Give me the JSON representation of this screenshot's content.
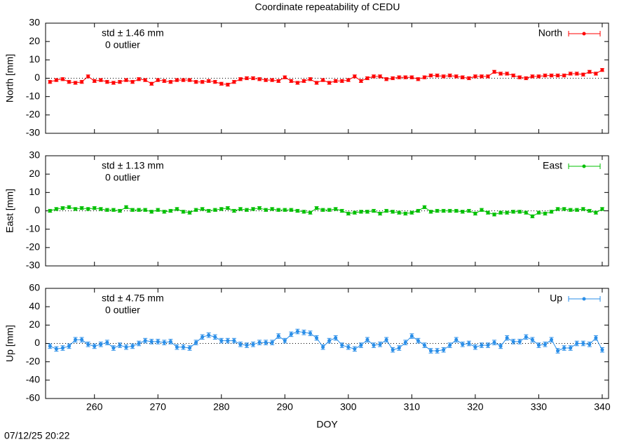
{
  "title": "Coordinate repeatability of CEDU",
  "footer": "07/12/25 20:22",
  "chart_data": [
    {
      "type": "line",
      "ylabel": "North [mm]",
      "std_label": "std ± 1.46 mm",
      "outlier_label": "0 outlier",
      "x": [
        253,
        254,
        255,
        256,
        257,
        258,
        259,
        260,
        261,
        262,
        263,
        264,
        265,
        266,
        267,
        268,
        269,
        270,
        271,
        272,
        273,
        274,
        275,
        276,
        277,
        278,
        279,
        280,
        281,
        282,
        283,
        284,
        285,
        286,
        287,
        288,
        289,
        290,
        291,
        292,
        293,
        294,
        295,
        296,
        297,
        298,
        299,
        300,
        301,
        302,
        303,
        304,
        305,
        306,
        307,
        308,
        309,
        310,
        311,
        312,
        313,
        314,
        315,
        316,
        317,
        318,
        319,
        320,
        321,
        322,
        323,
        324,
        325,
        326,
        327,
        328,
        329,
        330,
        331,
        332,
        333,
        334,
        335,
        336,
        337,
        338,
        339,
        340
      ],
      "xlim": [
        252.3,
        341
      ],
      "xticks": [
        260,
        270,
        280,
        290,
        300,
        310,
        320,
        330,
        340
      ],
      "ylim": [
        -30,
        30
      ],
      "yticks": [
        -30,
        -20,
        -10,
        0,
        10,
        20,
        30
      ],
      "series": [
        {
          "name": "North",
          "color": "#ff0000",
          "error": 0.8,
          "values": [
            -2,
            -1,
            -0.5,
            -2,
            -2.5,
            -2,
            1,
            -1.5,
            -1,
            -2,
            -2.5,
            -2,
            -1,
            -2,
            -0.5,
            -1,
            -3,
            -1,
            -1.5,
            -2,
            -1,
            -1,
            -1,
            -2,
            -2,
            -1.5,
            -2,
            -3,
            -3.5,
            -2,
            -0.5,
            0,
            0,
            -0.5,
            -1,
            -1,
            -1.5,
            0.5,
            -1.5,
            -2.5,
            -1.5,
            -0.5,
            -2.5,
            -1,
            -2.5,
            -1.5,
            -1.5,
            -1,
            1,
            -1.5,
            0,
            1,
            1,
            -0.5,
            0,
            0.5,
            0.5,
            0.5,
            -0.5,
            0.5,
            1.5,
            1.5,
            1,
            1.5,
            1,
            0.5,
            0,
            1,
            1,
            1,
            3.5,
            2.5,
            2.5,
            1.5,
            0.5,
            0,
            1,
            1,
            1.5,
            1.5,
            1.5,
            1.5,
            2.5,
            2.5,
            2,
            3.5,
            2.5,
            4.5
          ]
        }
      ]
    },
    {
      "type": "line",
      "ylabel": "East [mm]",
      "std_label": "std ± 1.13 mm",
      "outlier_label": "0 outlier",
      "x": [
        253,
        254,
        255,
        256,
        257,
        258,
        259,
        260,
        261,
        262,
        263,
        264,
        265,
        266,
        267,
        268,
        269,
        270,
        271,
        272,
        273,
        274,
        275,
        276,
        277,
        278,
        279,
        280,
        281,
        282,
        283,
        284,
        285,
        286,
        287,
        288,
        289,
        290,
        291,
        292,
        293,
        294,
        295,
        296,
        297,
        298,
        299,
        300,
        301,
        302,
        303,
        304,
        305,
        306,
        307,
        308,
        309,
        310,
        311,
        312,
        313,
        314,
        315,
        316,
        317,
        318,
        319,
        320,
        321,
        322,
        323,
        324,
        325,
        326,
        327,
        328,
        329,
        330,
        331,
        332,
        333,
        334,
        335,
        336,
        337,
        338,
        339,
        340
      ],
      "xlim": [
        252.3,
        341
      ],
      "xticks": [
        260,
        270,
        280,
        290,
        300,
        310,
        320,
        330,
        340
      ],
      "ylim": [
        -30,
        30
      ],
      "yticks": [
        -30,
        -20,
        -10,
        0,
        10,
        20,
        30
      ],
      "series": [
        {
          "name": "East",
          "color": "#00c000",
          "error": 0.8,
          "values": [
            0,
            1,
            1.5,
            2,
            1,
            1.5,
            1,
            1.5,
            1,
            0.5,
            0.5,
            0,
            2,
            0.5,
            0.5,
            0.5,
            -0.5,
            0.5,
            -0.5,
            0,
            1,
            -0.5,
            -1,
            0.5,
            1,
            0,
            0.5,
            1,
            1.5,
            0,
            1,
            0.5,
            1,
            1.5,
            0.5,
            1,
            0.5,
            0.5,
            0.5,
            0,
            -0.5,
            -1,
            1.5,
            0.5,
            0.5,
            1,
            0,
            -1.5,
            -1,
            -0.5,
            -0.5,
            0,
            -1.5,
            0,
            -0.5,
            -1,
            -1.5,
            -1,
            0,
            2,
            -0.5,
            0,
            0,
            0,
            0,
            -0.5,
            0,
            -1.5,
            0.5,
            -1,
            -2,
            -1,
            -1,
            -0.5,
            -0.5,
            -1,
            -3,
            -1,
            -1.5,
            -0.5,
            1,
            1,
            0.5,
            0.5,
            1,
            0,
            -1,
            1
          ]
        }
      ]
    },
    {
      "type": "line",
      "ylabel": "Up [mm]",
      "xlabel": "DOY",
      "std_label": "std ± 4.75 mm",
      "outlier_label": "0 outlier",
      "x": [
        253,
        254,
        255,
        256,
        257,
        258,
        259,
        260,
        261,
        262,
        263,
        264,
        265,
        266,
        267,
        268,
        269,
        270,
        271,
        272,
        273,
        274,
        275,
        276,
        277,
        278,
        279,
        280,
        281,
        282,
        283,
        284,
        285,
        286,
        287,
        288,
        289,
        290,
        291,
        292,
        293,
        294,
        295,
        296,
        297,
        298,
        299,
        300,
        301,
        302,
        303,
        304,
        305,
        306,
        307,
        308,
        309,
        310,
        311,
        312,
        313,
        314,
        315,
        316,
        317,
        318,
        319,
        320,
        321,
        322,
        323,
        324,
        325,
        326,
        327,
        328,
        329,
        330,
        331,
        332,
        333,
        334,
        335,
        336,
        337,
        338,
        339,
        340
      ],
      "xlim": [
        252.3,
        341
      ],
      "xticks": [
        260,
        270,
        280,
        290,
        300,
        310,
        320,
        330,
        340
      ],
      "ylim": [
        -60,
        60
      ],
      "yticks": [
        -60,
        -40,
        -20,
        0,
        20,
        40,
        60
      ],
      "series": [
        {
          "name": "Up",
          "color": "#2a8ee8",
          "error": 2.5,
          "values": [
            -3,
            -6,
            -5,
            -3,
            4,
            4,
            -1,
            -3,
            -1,
            1,
            -5,
            -2,
            -4,
            -3,
            0,
            3,
            2,
            2,
            1,
            2,
            -4,
            -4,
            -5,
            1,
            7,
            9,
            7,
            3,
            3,
            3,
            -1,
            -2,
            -1,
            1,
            1,
            1,
            8,
            3,
            10,
            13,
            12,
            11,
            6,
            -4,
            3,
            6,
            -2,
            -4,
            -6,
            -2,
            4,
            -2,
            -1,
            4,
            -7,
            -5,
            1,
            8,
            3,
            -2,
            -8,
            -8,
            -7,
            -2,
            4,
            -1,
            0,
            -4,
            -2,
            -2,
            1,
            -3,
            6,
            2,
            2,
            7,
            4,
            -2,
            -1,
            4,
            -8,
            -5,
            -5,
            0,
            0,
            -1,
            6,
            -7
          ]
        }
      ]
    }
  ]
}
